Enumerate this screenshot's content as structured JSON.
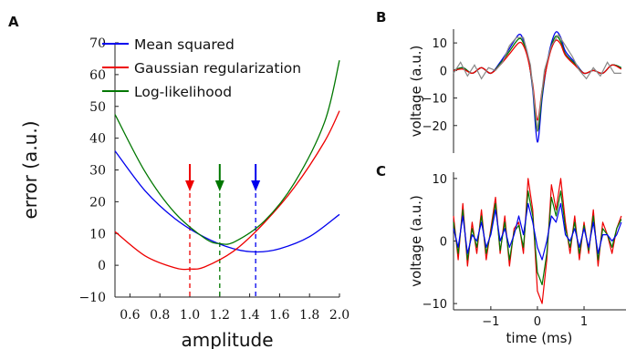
{
  "chart_data": [
    {
      "panel": "A",
      "type": "line",
      "xlabel": "amplitude",
      "ylabel": "error (a.u.)",
      "xlim": [
        0.5,
        2.0
      ],
      "ylim": [
        -10,
        70
      ],
      "xticks": [
        "0.6",
        "0.8",
        "1.0",
        "1.2",
        "1.4",
        "1.6",
        "1.8",
        "2.0"
      ],
      "yticks": [
        "−10",
        "0",
        "10",
        "20",
        "30",
        "40",
        "50",
        "60",
        "70"
      ],
      "grid": false,
      "legend": "top-left",
      "series": [
        {
          "name": "Mean squared",
          "color": "#0000ee",
          "x": [
            0.5,
            0.7,
            0.9,
            1.1,
            1.3,
            1.45,
            1.6,
            1.8,
            2.0
          ],
          "y": [
            36,
            23.5,
            14.7,
            8.8,
            5.1,
            4.2,
            5.2,
            9.0,
            16.0
          ],
          "minimum_x": 1.44
        },
        {
          "name": "Gaussian regularization",
          "color": "#ee0000",
          "x": [
            0.5,
            0.7,
            0.9,
            1.0,
            1.1,
            1.3,
            1.5,
            1.7,
            1.9,
            2.0
          ],
          "y": [
            10.6,
            3.0,
            -0.8,
            -1.2,
            -0.5,
            4.7,
            13.5,
            24.6,
            38.9,
            48.6
          ],
          "minimum_x": 1.0
        },
        {
          "name": "Log-likelihood",
          "color": "#007700",
          "x": [
            0.5,
            0.7,
            0.9,
            1.1,
            1.2,
            1.3,
            1.5,
            1.7,
            1.9,
            2.0
          ],
          "y": [
            47.5,
            29.5,
            16.5,
            8.5,
            6.8,
            7.4,
            14.0,
            26.0,
            45.0,
            64.5
          ],
          "minimum_x": 1.2
        }
      ]
    },
    {
      "panel": "B",
      "type": "line",
      "xlabel": "",
      "ylabel": "voltage (a.u.)",
      "xlim": [
        -1.8,
        1.9
      ],
      "ylim": [
        -30,
        15
      ],
      "yticks": [
        "−20",
        "−10",
        "0",
        "10"
      ],
      "grid": false,
      "series": [
        {
          "color": "#0000ee",
          "x": [
            -1.8,
            -1.6,
            -1.4,
            -1.2,
            -1.0,
            -0.8,
            -0.6,
            -0.4,
            -0.3,
            -0.2,
            -0.1,
            0.0,
            0.1,
            0.2,
            0.3,
            0.4,
            0.5,
            0.6,
            0.8,
            1.0,
            1.2,
            1.4,
            1.6,
            1.8
          ],
          "y": [
            0,
            1,
            -1,
            1,
            -1,
            3,
            8,
            13,
            11,
            5,
            -7,
            -26,
            -10,
            2,
            10,
            14,
            12,
            7,
            3,
            -1,
            0,
            -1,
            2,
            1
          ]
        },
        {
          "color": "#007700",
          "x": [
            -1.8,
            -1.6,
            -1.4,
            -1.2,
            -1.0,
            -0.8,
            -0.6,
            -0.4,
            -0.3,
            -0.2,
            -0.1,
            0.0,
            0.1,
            0.2,
            0.3,
            0.4,
            0.5,
            0.6,
            0.8,
            1.0,
            1.2,
            1.4,
            1.6,
            1.8
          ],
          "y": [
            0,
            1,
            -1,
            1,
            -1,
            2.5,
            7,
            11.5,
            10,
            4.5,
            -6,
            -22,
            -8.5,
            2,
            9,
            12.5,
            10.5,
            6,
            2.5,
            -1,
            0,
            -1,
            2,
            1
          ]
        },
        {
          "color": "#ee0000",
          "x": [
            -1.8,
            -1.6,
            -1.4,
            -1.2,
            -1.0,
            -0.8,
            -0.6,
            -0.4,
            -0.3,
            -0.2,
            -0.1,
            0.0,
            0.1,
            0.2,
            0.3,
            0.4,
            0.5,
            0.6,
            0.8,
            1.0,
            1.2,
            1.4,
            1.6,
            1.8
          ],
          "y": [
            0,
            0.5,
            -1,
            1,
            -1,
            2,
            6,
            10,
            9,
            4,
            -5,
            -18,
            -7,
            1.5,
            8,
            11,
            9.5,
            5.5,
            2,
            -1,
            0,
            -1,
            2,
            0.5
          ]
        },
        {
          "color": "#888888",
          "x": [
            -1.8,
            -1.65,
            -1.5,
            -1.35,
            -1.2,
            -1.05,
            -0.9,
            -0.75,
            -0.6,
            -0.45,
            -0.3,
            -0.15,
            0.0,
            0.15,
            0.3,
            0.45,
            0.6,
            0.75,
            0.9,
            1.05,
            1.2,
            1.35,
            1.5,
            1.65,
            1.8
          ],
          "y": [
            -1,
            3,
            -2,
            2,
            -3,
            1,
            0,
            3,
            9,
            12,
            12,
            2,
            -22,
            0,
            9,
            13,
            9,
            5,
            0,
            -3,
            1,
            -2,
            3,
            -1,
            -1
          ]
        }
      ]
    },
    {
      "panel": "C",
      "type": "line",
      "xlabel": "time (ms)",
      "ylabel": "voltage (a.u.)",
      "xlim": [
        -1.8,
        1.9
      ],
      "ylim": [
        -11,
        11
      ],
      "xticks": [
        "−1",
        "0",
        "1"
      ],
      "yticks": [
        "−10",
        "0",
        "10"
      ],
      "grid": false,
      "series": [
        {
          "color": "#ee0000",
          "x": [
            -1.8,
            -1.7,
            -1.6,
            -1.5,
            -1.4,
            -1.3,
            -1.2,
            -1.1,
            -1.0,
            -0.9,
            -0.8,
            -0.7,
            -0.6,
            -0.5,
            -0.4,
            -0.3,
            -0.2,
            -0.1,
            0.0,
            0.1,
            0.2,
            0.3,
            0.4,
            0.5,
            0.6,
            0.7,
            0.8,
            0.9,
            1.0,
            1.1,
            1.2,
            1.3,
            1.4,
            1.5,
            1.6,
            1.7,
            1.8
          ],
          "y": [
            4,
            -3,
            6,
            -4,
            3,
            -2,
            5,
            -3,
            2,
            7,
            -2,
            4,
            -4,
            2,
            3,
            -2,
            10,
            5,
            -8,
            -10,
            -3,
            9,
            5,
            10,
            3,
            -2,
            4,
            -3,
            3,
            -2,
            5,
            -4,
            3,
            1,
            -2,
            2,
            4
          ]
        },
        {
          "color": "#007700",
          "x": [
            -1.8,
            -1.7,
            -1.6,
            -1.5,
            -1.4,
            -1.3,
            -1.2,
            -1.1,
            -1.0,
            -0.9,
            -0.8,
            -0.7,
            -0.6,
            -0.5,
            -0.4,
            -0.3,
            -0.2,
            -0.1,
            0.0,
            0.1,
            0.2,
            0.3,
            0.4,
            0.5,
            0.6,
            0.7,
            0.8,
            0.9,
            1.0,
            1.1,
            1.2,
            1.3,
            1.4,
            1.5,
            1.6,
            1.7,
            1.8
          ],
          "y": [
            3,
            -2,
            5,
            -3,
            2,
            -1,
            4,
            -2,
            1.5,
            6,
            -1.5,
            3,
            -3,
            1.5,
            2.5,
            -1,
            8,
            4,
            -5,
            -7,
            -2,
            7,
            4,
            8,
            2,
            -1,
            3,
            -2,
            2.5,
            -1.5,
            4,
            -3,
            2,
            1,
            -1,
            2,
            3.5
          ]
        },
        {
          "color": "#0000ee",
          "x": [
            -1.8,
            -1.7,
            -1.6,
            -1.5,
            -1.4,
            -1.3,
            -1.2,
            -1.1,
            -1.0,
            -0.9,
            -0.8,
            -0.7,
            -0.6,
            -0.5,
            -0.4,
            -0.3,
            -0.2,
            -0.1,
            0.0,
            0.1,
            0.2,
            0.3,
            0.4,
            0.5,
            0.6,
            0.7,
            0.8,
            0.9,
            1.0,
            1.1,
            1.2,
            1.3,
            1.4,
            1.5,
            1.6,
            1.7,
            1.8
          ],
          "y": [
            2,
            -1,
            4,
            -2,
            1,
            0,
            3,
            -1,
            1,
            5,
            0,
            2,
            -1,
            1,
            4,
            1,
            6,
            3,
            -1,
            -3,
            0,
            4,
            3,
            6,
            1,
            0,
            2,
            -1,
            2,
            -1,
            3,
            -2,
            1,
            1,
            0,
            1,
            3
          ]
        }
      ]
    }
  ],
  "panel_labels": {
    "a": "A",
    "b": "B",
    "c": "C"
  }
}
